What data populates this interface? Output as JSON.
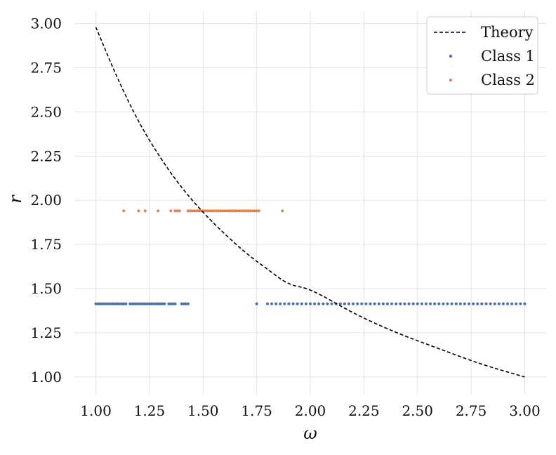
{
  "chart_data": {
    "type": "scatter",
    "xlabel": "ω",
    "ylabel": "r",
    "xlim": [
      0.9,
      3.1
    ],
    "ylim": [
      0.9,
      3.07
    ],
    "xticks": [
      "1.00",
      "1.25",
      "1.50",
      "1.75",
      "2.00",
      "2.25",
      "2.50",
      "2.75",
      "3.00"
    ],
    "yticks": [
      "1.00",
      "1.25",
      "1.50",
      "1.75",
      "2.00",
      "2.25",
      "2.50",
      "2.75",
      "3.00"
    ],
    "grid": true,
    "legend_position": "top-right",
    "series": [
      {
        "name": "Theory",
        "kind": "line",
        "style": "dashed",
        "color": "#000000",
        "x": [
          1.0,
          1.1,
          1.2,
          1.3,
          1.4,
          1.5,
          1.6,
          1.7,
          1.8,
          1.9,
          2.0,
          2.2,
          2.4,
          2.6,
          2.8,
          3.0
        ],
        "y": [
          2.98,
          2.69,
          2.44,
          2.24,
          2.07,
          1.93,
          1.81,
          1.7,
          1.61,
          1.52,
          1.5,
          1.36,
          1.25,
          1.16,
          1.07,
          1.0
        ]
      },
      {
        "name": "Class 1",
        "kind": "scatter",
        "color": "#4c72b0",
        "y_value": 1.414,
        "x": [
          1.0,
          1.01,
          1.02,
          1.03,
          1.04,
          1.05,
          1.06,
          1.07,
          1.08,
          1.09,
          1.1,
          1.11,
          1.12,
          1.13,
          1.14,
          1.16,
          1.17,
          1.18,
          1.19,
          1.2,
          1.21,
          1.22,
          1.23,
          1.24,
          1.25,
          1.26,
          1.27,
          1.28,
          1.29,
          1.3,
          1.31,
          1.32,
          1.34,
          1.35,
          1.36,
          1.37,
          1.4,
          1.41,
          1.42,
          1.43,
          1.75,
          1.8,
          1.82,
          1.84,
          1.86,
          1.88,
          1.9,
          1.92,
          1.94,
          1.96,
          1.98,
          2.0,
          2.02,
          2.04,
          2.06,
          2.08,
          2.1,
          2.12,
          2.14,
          2.16,
          2.18,
          2.2,
          2.22,
          2.24,
          2.26,
          2.28,
          2.3,
          2.32,
          2.34,
          2.36,
          2.38,
          2.4,
          2.42,
          2.44,
          2.46,
          2.48,
          2.5,
          2.52,
          2.54,
          2.56,
          2.58,
          2.6,
          2.62,
          2.64,
          2.66,
          2.68,
          2.7,
          2.72,
          2.74,
          2.76,
          2.78,
          2.8,
          2.82,
          2.84,
          2.86,
          2.88,
          2.9,
          2.92,
          2.94,
          2.96,
          2.98,
          3.0
        ]
      },
      {
        "name": "Class 2",
        "kind": "scatter",
        "color": "#dd8452",
        "y_value": 1.94,
        "x": [
          1.13,
          1.2,
          1.23,
          1.29,
          1.35,
          1.37,
          1.38,
          1.39,
          1.43,
          1.44,
          1.45,
          1.46,
          1.47,
          1.48,
          1.49,
          1.5,
          1.51,
          1.52,
          1.53,
          1.54,
          1.55,
          1.56,
          1.57,
          1.58,
          1.59,
          1.6,
          1.61,
          1.62,
          1.63,
          1.64,
          1.65,
          1.66,
          1.67,
          1.68,
          1.69,
          1.7,
          1.71,
          1.72,
          1.73,
          1.74,
          1.75,
          1.76,
          1.87
        ]
      }
    ]
  }
}
